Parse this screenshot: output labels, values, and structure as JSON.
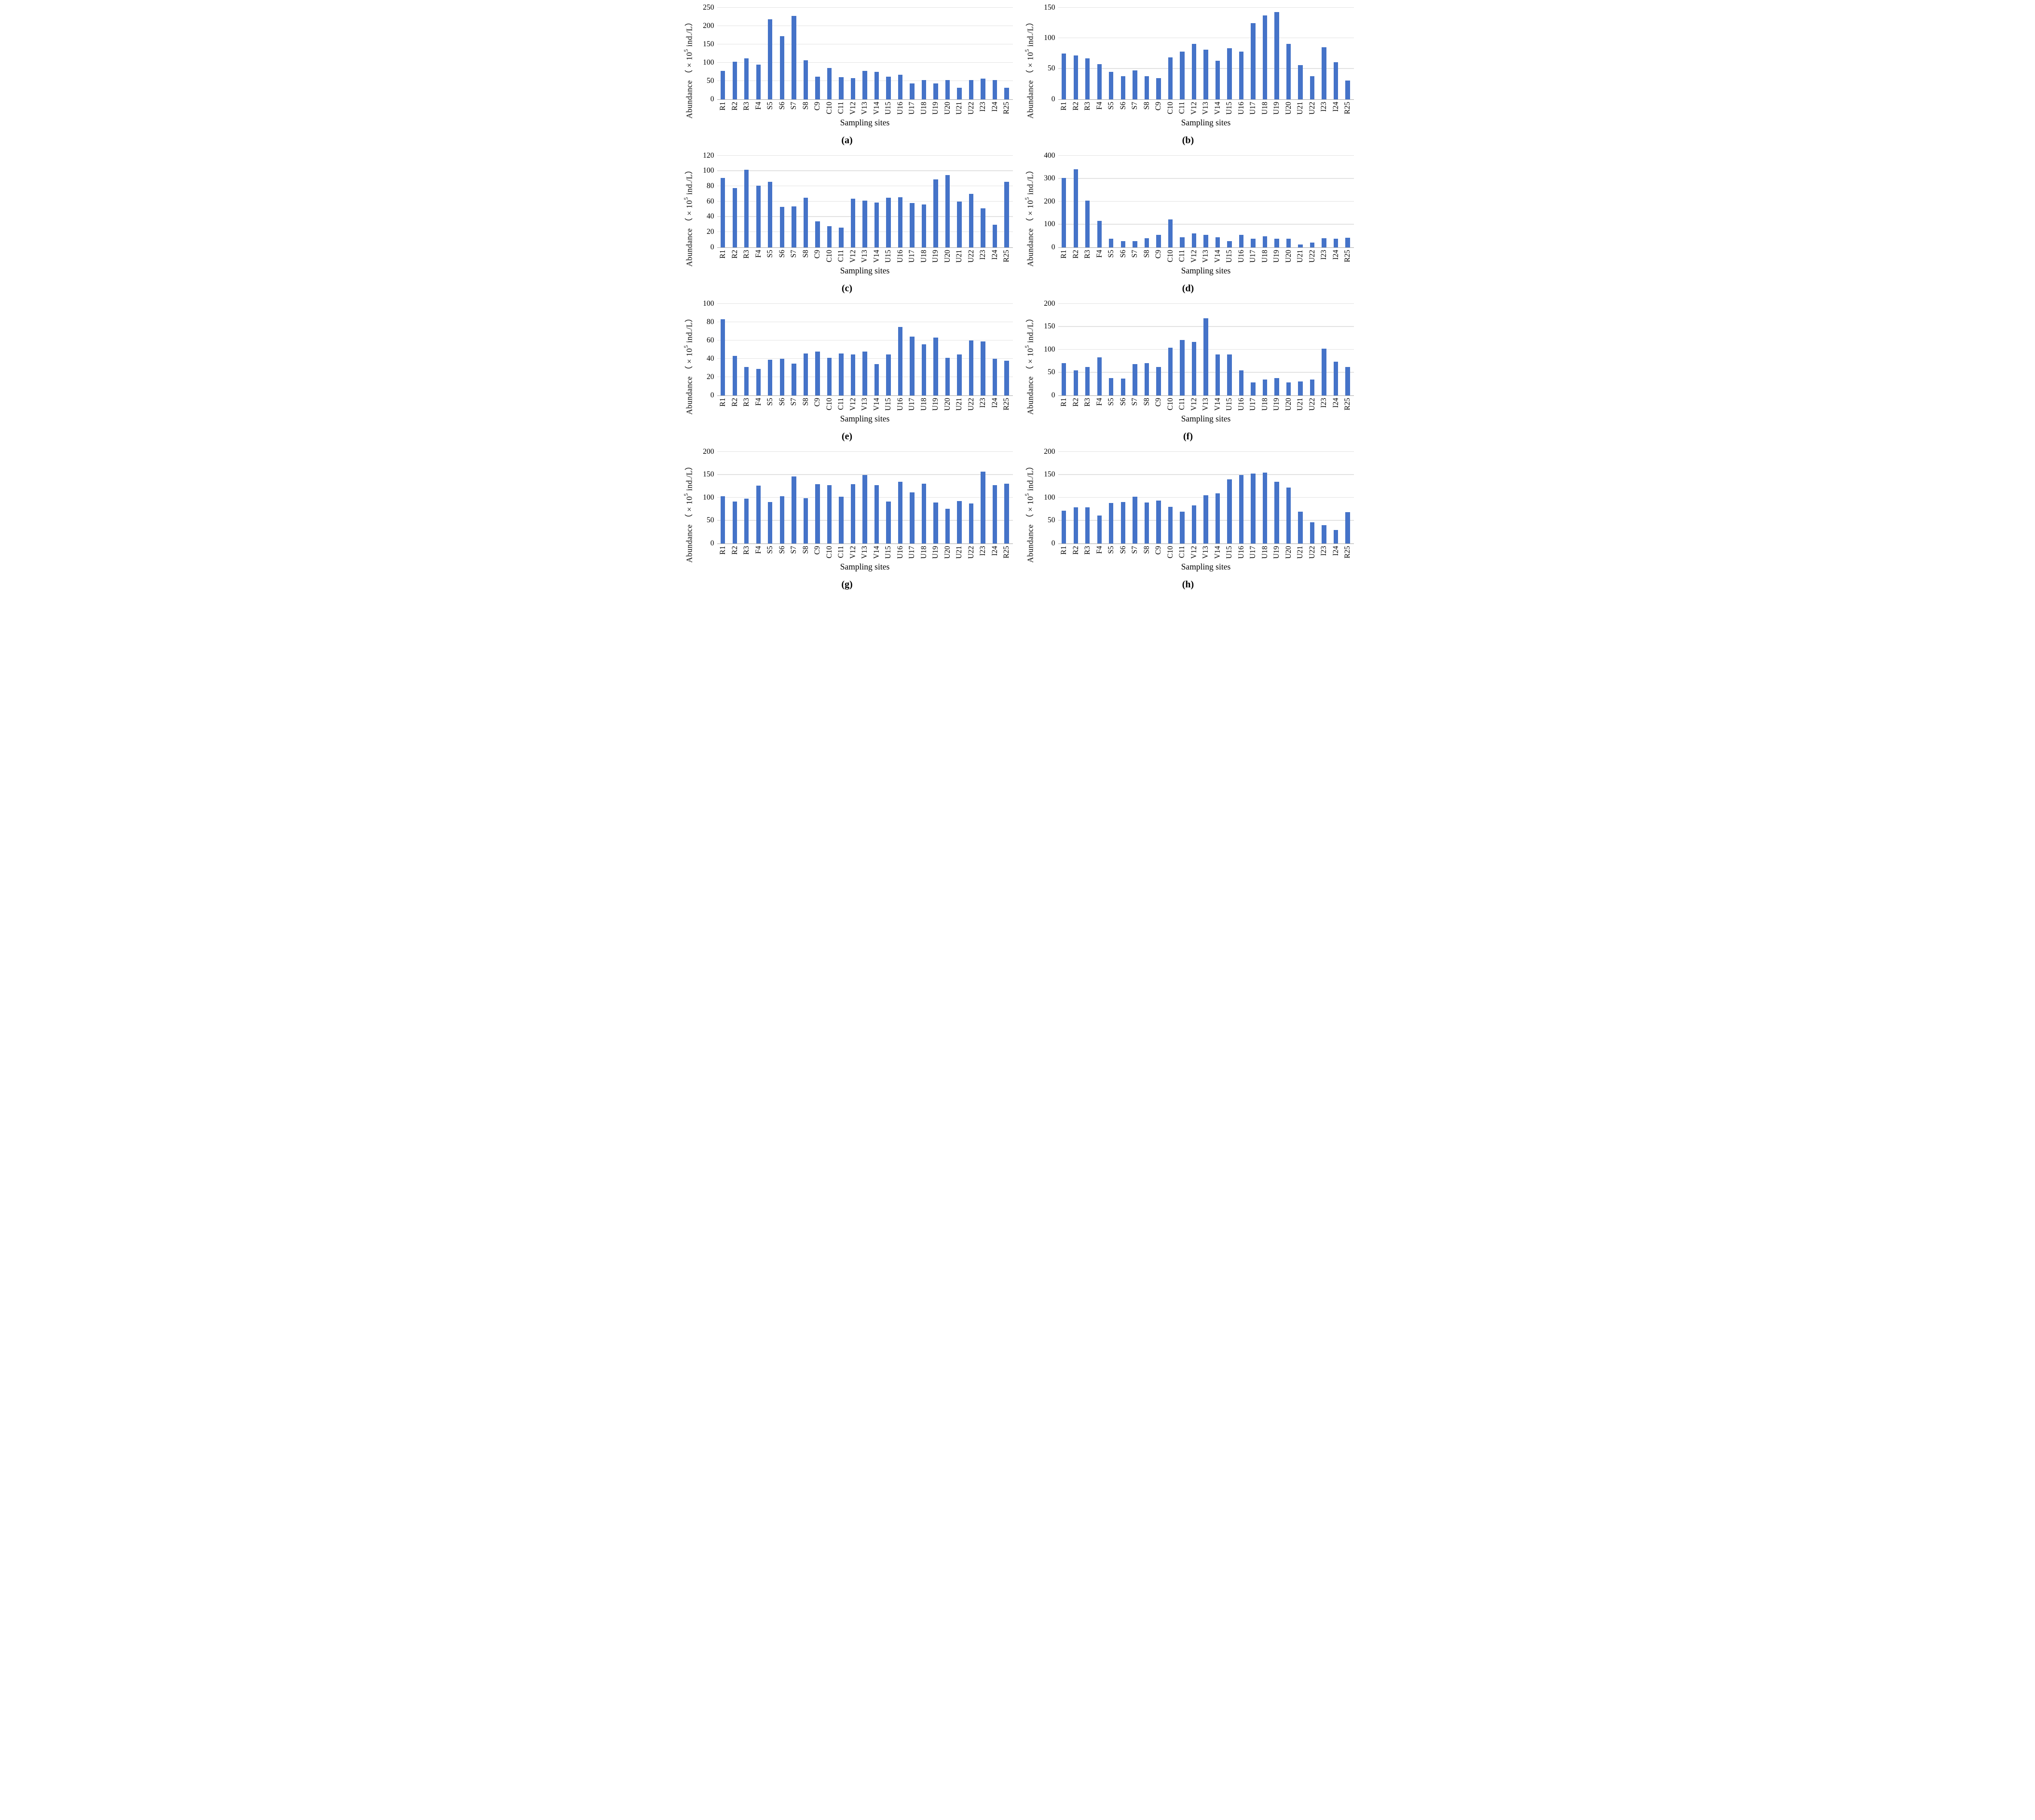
{
  "figure": {
    "ylabel": "Abundance （×10⁵ ind./L）",
    "ylabel_prefix": "Abundance （×10",
    "ylabel_sup": "5",
    "ylabel_suffix": " ind./L）",
    "xlabel": "Sampling sites",
    "bar_color": "#4573c8",
    "gridline_color": "#e3e3e3",
    "axis_line_color": "#a9a9a9",
    "categories": [
      "R1",
      "R2",
      "R3",
      "F4",
      "S5",
      "S6",
      "S7",
      "S8",
      "C9",
      "C10",
      "C11",
      "V12",
      "V13",
      "V14",
      "U15",
      "U16",
      "U17",
      "U18",
      "U19",
      "U20",
      "U21",
      "U22",
      "I23",
      "I24",
      "R25"
    ]
  },
  "chart_data": [
    {
      "type": "bar",
      "panel_label": "(a)",
      "ylabel": "Abundance （×10⁵ ind./L）",
      "xlabel": "Sampling sites",
      "ylim": [
        0,
        250
      ],
      "yticks": [
        0,
        50,
        100,
        150,
        200,
        250
      ],
      "grid": true,
      "categories": [
        "R1",
        "R2",
        "R3",
        "F4",
        "S5",
        "S6",
        "S7",
        "S8",
        "C9",
        "C10",
        "C11",
        "V12",
        "V13",
        "V14",
        "U15",
        "U16",
        "U17",
        "U18",
        "U19",
        "U20",
        "U21",
        "U22",
        "I23",
        "I24",
        "R25"
      ],
      "values": [
        77,
        103,
        112,
        95,
        218,
        173,
        227,
        107,
        62,
        85,
        60,
        58,
        77,
        75,
        62,
        67,
        43,
        53,
        43,
        53,
        31,
        53,
        56,
        53,
        31
      ]
    },
    {
      "type": "bar",
      "panel_label": "(b)",
      "ylabel": "Abundance （×10⁵ ind./L）",
      "xlabel": "Sampling sites",
      "ylim": [
        0,
        150
      ],
      "yticks": [
        0,
        50,
        100,
        150
      ],
      "grid": true,
      "categories": [
        "R1",
        "R2",
        "R3",
        "F4",
        "S5",
        "S6",
        "S7",
        "S8",
        "C9",
        "C10",
        "C11",
        "V12",
        "V13",
        "V14",
        "U15",
        "U16",
        "U17",
        "U18",
        "U19",
        "U20",
        "U21",
        "U22",
        "I23",
        "I24",
        "R25"
      ],
      "values": [
        75,
        72,
        67,
        58,
        45,
        38,
        47,
        38,
        35,
        69,
        78,
        91,
        81,
        63,
        84,
        78,
        125,
        137,
        143,
        91,
        56,
        38,
        85,
        61,
        31
      ]
    },
    {
      "type": "bar",
      "panel_label": "(c)",
      "ylabel": "Abundance （×10⁵ ind./L）",
      "xlabel": "Sampling sites",
      "ylim": [
        0,
        120
      ],
      "yticks": [
        0,
        20,
        40,
        60,
        80,
        100,
        120
      ],
      "grid": true,
      "categories": [
        "R1",
        "R2",
        "R3",
        "F4",
        "S5",
        "S6",
        "S7",
        "S8",
        "C9",
        "C10",
        "C11",
        "V12",
        "V13",
        "V14",
        "U15",
        "U16",
        "U17",
        "U18",
        "U19",
        "U20",
        "U21",
        "U22",
        "I23",
        "I24",
        "R25"
      ],
      "values": [
        91,
        78,
        102,
        81,
        86,
        53,
        54,
        65,
        34,
        28,
        26,
        64,
        61,
        59,
        65,
        66,
        58,
        56,
        89,
        95,
        60,
        70,
        51,
        30,
        86
      ]
    },
    {
      "type": "bar",
      "panel_label": "(d)",
      "ylabel": "Abundance （×10⁵ ind./L）",
      "xlabel": "Sampling sites",
      "ylim": [
        0,
        400
      ],
      "yticks": [
        0,
        100,
        200,
        300,
        400
      ],
      "grid": true,
      "categories": [
        "R1",
        "R2",
        "R3",
        "F4",
        "S5",
        "S6",
        "S7",
        "S8",
        "C9",
        "C10",
        "C11",
        "V12",
        "V13",
        "V14",
        "U15",
        "U16",
        "U17",
        "U18",
        "U19",
        "U20",
        "U21",
        "U22",
        "I23",
        "I24",
        "R25"
      ],
      "values": [
        303,
        342,
        204,
        115,
        38,
        27,
        27,
        40,
        55,
        122,
        45,
        62,
        55,
        45,
        27,
        55,
        38,
        48,
        38,
        38,
        13,
        22,
        40,
        38,
        42
      ]
    },
    {
      "type": "bar",
      "panel_label": "(e)",
      "ylabel": "Abundance （×10⁵ ind./L）",
      "xlabel": "Sampling sites",
      "ylim": [
        0,
        100
      ],
      "yticks": [
        0,
        20,
        40,
        60,
        80,
        100
      ],
      "grid": true,
      "categories": [
        "R1",
        "R2",
        "R3",
        "F4",
        "S5",
        "S6",
        "S7",
        "S8",
        "C9",
        "C10",
        "C11",
        "V12",
        "V13",
        "V14",
        "U15",
        "U16",
        "U17",
        "U18",
        "U19",
        "U20",
        "U21",
        "U22",
        "I23",
        "I24",
        "R25"
      ],
      "values": [
        83,
        43,
        31,
        29,
        39,
        40,
        35,
        46,
        48,
        41,
        46,
        45,
        48,
        34,
        45,
        75,
        64,
        56,
        63,
        41,
        45,
        60,
        59,
        40,
        38
      ]
    },
    {
      "type": "bar",
      "panel_label": "(f)",
      "ylabel": "Abundance （×10⁵ ind./L）",
      "xlabel": "Sampling sites",
      "ylim": [
        0,
        200
      ],
      "yticks": [
        0,
        50,
        100,
        150,
        200
      ],
      "grid": true,
      "categories": [
        "R1",
        "R2",
        "R3",
        "F4",
        "S5",
        "S6",
        "S7",
        "S8",
        "C9",
        "C10",
        "C11",
        "V12",
        "V13",
        "V14",
        "U15",
        "U16",
        "U17",
        "U18",
        "U19",
        "U20",
        "U21",
        "U22",
        "I23",
        "I24",
        "R25"
      ],
      "values": [
        71,
        55,
        62,
        83,
        38,
        37,
        68,
        71,
        62,
        104,
        121,
        117,
        168,
        90,
        90,
        55,
        28,
        35,
        38,
        28,
        31,
        35,
        102,
        74,
        62
      ]
    },
    {
      "type": "bar",
      "panel_label": "(g)",
      "ylabel": "Abundance （×10⁵ ind./L）",
      "xlabel": "Sampling sites",
      "ylim": [
        0,
        200
      ],
      "yticks": [
        0,
        50,
        100,
        150,
        200
      ],
      "grid": true,
      "categories": [
        "R1",
        "R2",
        "R3",
        "F4",
        "S5",
        "S6",
        "S7",
        "S8",
        "C9",
        "C10",
        "C11",
        "V12",
        "V13",
        "V14",
        "U15",
        "U16",
        "U17",
        "U18",
        "U19",
        "U20",
        "U21",
        "U22",
        "I23",
        "I24",
        "R25"
      ],
      "values": [
        103,
        92,
        98,
        126,
        91,
        103,
        146,
        99,
        129,
        127,
        102,
        130,
        149,
        127,
        92,
        135,
        112,
        131,
        90,
        76,
        93,
        87,
        157,
        127,
        131
      ]
    },
    {
      "type": "bar",
      "panel_label": "(h)",
      "ylabel": "Abundance （×10⁵ ind./L）",
      "xlabel": "Sampling sites",
      "ylim": [
        0,
        200
      ],
      "yticks": [
        0,
        50,
        100,
        150,
        200
      ],
      "grid": true,
      "categories": [
        "R1",
        "R2",
        "R3",
        "F4",
        "S5",
        "S6",
        "S7",
        "S8",
        "C9",
        "C10",
        "C11",
        "V12",
        "V13",
        "V14",
        "U15",
        "U16",
        "U17",
        "U18",
        "U19",
        "U20",
        "U21",
        "U22",
        "I23",
        "I24",
        "R25"
      ],
      "values": [
        72,
        79,
        79,
        61,
        88,
        91,
        102,
        90,
        94,
        80,
        70,
        83,
        105,
        110,
        140,
        149,
        153,
        155,
        135,
        122,
        70,
        46,
        40,
        29,
        68
      ]
    }
  ]
}
